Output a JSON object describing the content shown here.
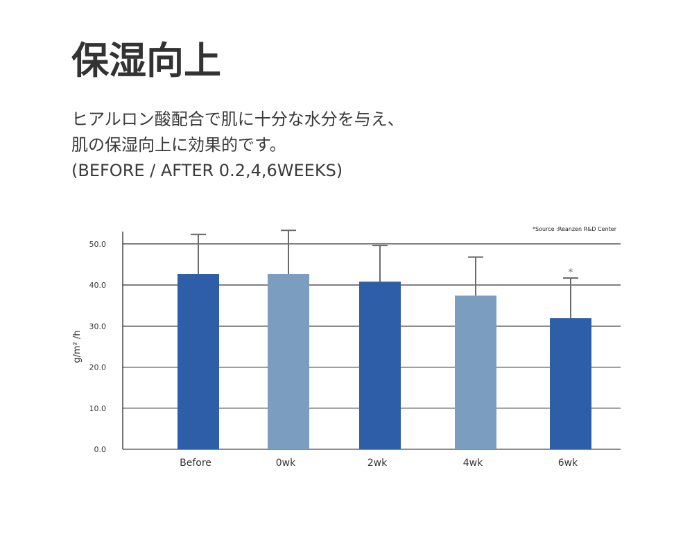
{
  "title": "保湿向上",
  "description": [
    "ヒアルロン酸配合で肌に十分な水分を与え、",
    "肌の保湿向上に効果的です。",
    "(BEFORE / AFTER 0.2,4,6WEEKS)"
  ],
  "colors": {
    "dark_bar": "#2f5ea8",
    "light_bar": "#7b9dbf",
    "error_bar": "#6b6b6b",
    "grid": "#1a1a1a"
  },
  "chart_data": {
    "type": "bar",
    "source_note": "*Source :Reanzen R&D Center",
    "ylabel": "g/m² /h",
    "xlabel": "",
    "ylim": [
      0,
      53
    ],
    "yticks": [
      "0.0",
      "10.0",
      "20.0",
      "30.0",
      "40.0",
      "50.0"
    ],
    "ytick_values": [
      0,
      10,
      20,
      30,
      40,
      50
    ],
    "categories": [
      "Before",
      "0wk",
      "2wk",
      "4wk",
      "6wk"
    ],
    "values": [
      42.7,
      42.7,
      40.8,
      37.4,
      31.9
    ],
    "error_upper": [
      52.3,
      53.3,
      49.6,
      46.8,
      41.7
    ],
    "bar_colors": [
      "dark",
      "light",
      "dark",
      "light",
      "dark"
    ],
    "annotations": [
      {
        "category": "6wk",
        "text": "*"
      }
    ],
    "grid": true
  }
}
